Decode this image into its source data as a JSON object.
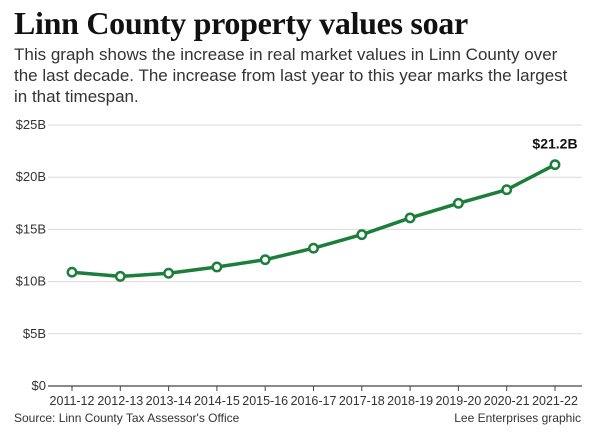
{
  "header": {
    "title": "Linn County property values soar",
    "subtitle": "This graph shows the increase in real market values in Linn County over the last decade. The increase from last year to this year marks the largest in that timespan."
  },
  "footer": {
    "source": "Source: Linn County Tax Assessor's Office",
    "credit": "Lee Enterprises graphic"
  },
  "chart_data": {
    "type": "line",
    "categories": [
      "2011-12",
      "2012-13",
      "2013-14",
      "2014-15",
      "2015-16",
      "2016-17",
      "2017-18",
      "2018-19",
      "2019-20",
      "2020-21",
      "2021-22"
    ],
    "values": [
      10.9,
      10.5,
      10.8,
      11.4,
      12.1,
      13.2,
      14.5,
      16.1,
      17.5,
      18.8,
      21.2
    ],
    "ylim": [
      0,
      25
    ],
    "yticks": [
      0,
      5,
      10,
      15,
      20,
      25
    ],
    "ytick_labels": [
      "$0",
      "$5B",
      "$10B",
      "$15B",
      "$20B",
      "$25B"
    ],
    "annotations": [
      {
        "index": 10,
        "text": "$21.2B"
      }
    ],
    "grid": true,
    "line_color": "#1b7f3b",
    "marker_fill": "#ffffff"
  }
}
